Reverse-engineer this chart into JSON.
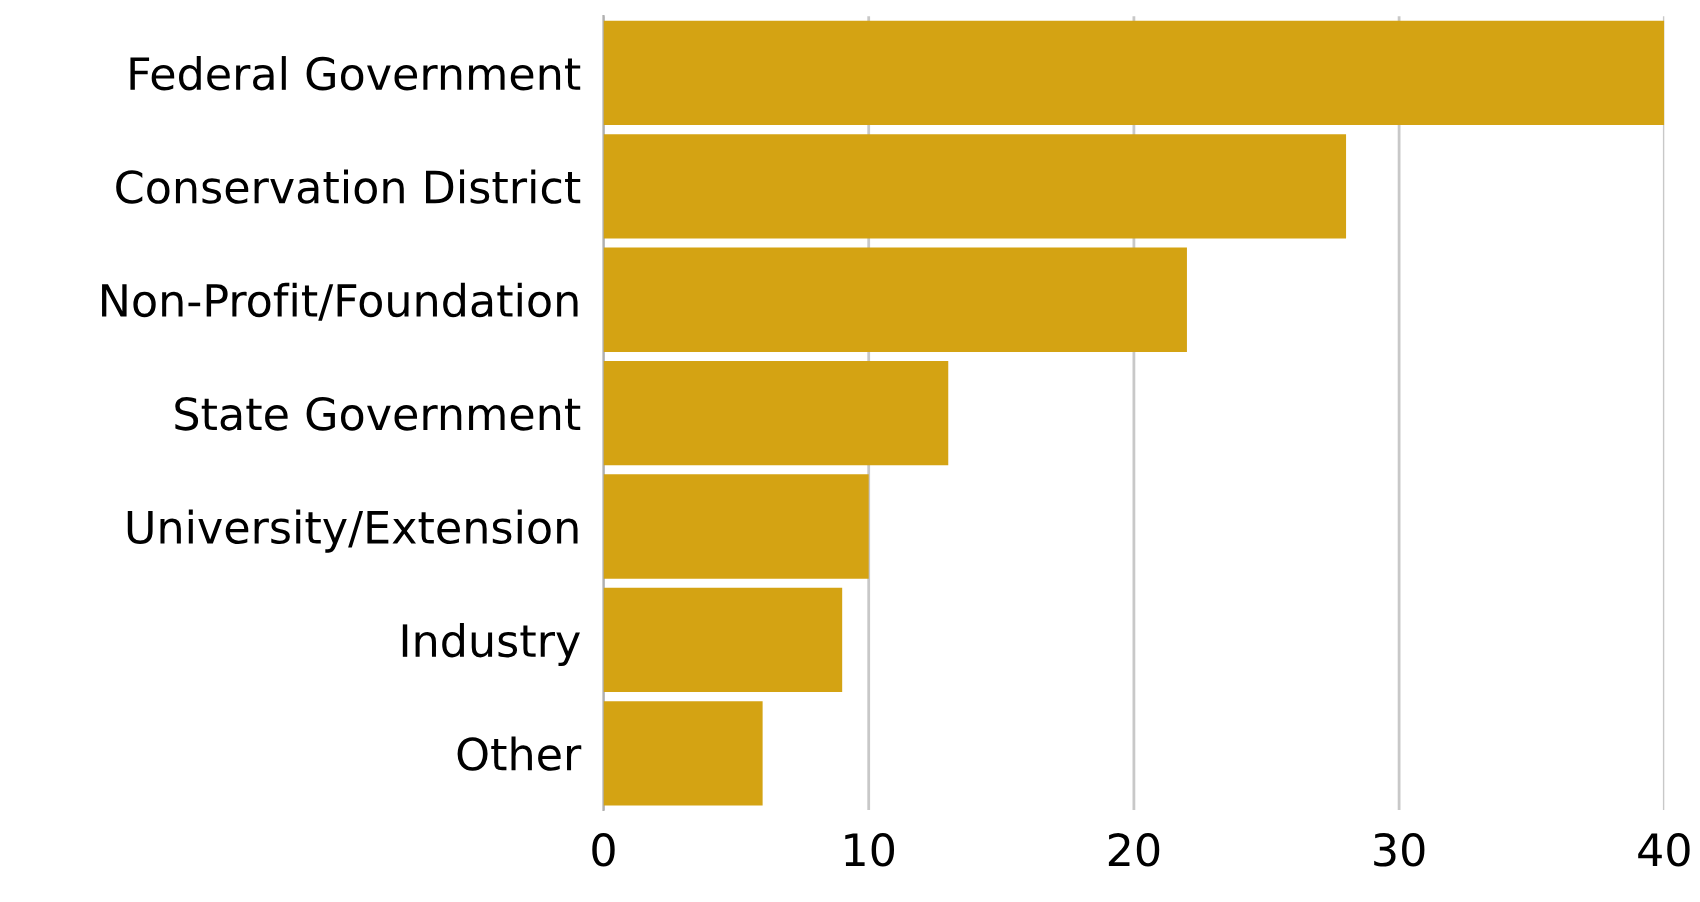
{
  "chart_data": {
    "type": "bar",
    "orientation": "horizontal",
    "categories": [
      "Federal Government",
      "Conservation District",
      "Non-Profit/Foundation",
      "State Government",
      "University/Extension",
      "Industry",
      "Other"
    ],
    "values": [
      40,
      28,
      22,
      13,
      10,
      9,
      6
    ],
    "color": "#d4a313",
    "xlim": [
      0,
      40
    ],
    "xticks": [
      0,
      10,
      20,
      30,
      40
    ],
    "grid": "x",
    "legend": false
  }
}
